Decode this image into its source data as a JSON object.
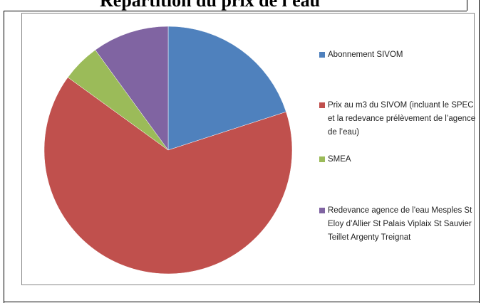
{
  "chart_data": {
    "type": "pie",
    "title": "Répartition du prix de l'eau",
    "series": [
      {
        "name": "Abonnement SIVOM",
        "color": "#4f81bd",
        "value": 20
      },
      {
        "name": "Prix au m3 du SIVOM (incluant le SPEC et la redevance prélèvement de l’agence de l’eau)",
        "color": "#c0504d",
        "value": 65
      },
      {
        "name": "SMEA",
        "color": "#9bbb59",
        "value": 5
      },
      {
        "name": "Redevance agence de l'eau Mesples St Eloy d’Allier St Palais Viplaix St Sauvier Teillet Argenty Treignat",
        "color": "#8064a2",
        "value": 10
      }
    ],
    "legend": "right"
  }
}
